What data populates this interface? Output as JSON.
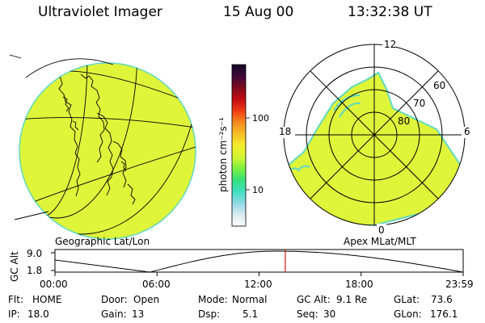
{
  "header": {
    "title": "Ultraviolet Imager",
    "date": "15 Aug 00",
    "time": "13:32:38 UT"
  },
  "colorbar": {
    "unit_label": "photon cm⁻²s⁻¹",
    "tick_100": "100",
    "tick_10": "10",
    "stops": [
      "#ffffff",
      "#d9eaf0",
      "#8fd9e6",
      "#3fe0c0",
      "#35e27a",
      "#7ef03f",
      "#d3f533",
      "#f4ee2c",
      "#f6bd27",
      "#f48a1e",
      "#ee3d14",
      "#c40a12",
      "#7e0a1e",
      "#3d0a3a",
      "#140624"
    ]
  },
  "globe_panel": {
    "label": "Geographic Lat/Lon",
    "fill_color": "#dff53a",
    "edge_color": "#5fd9c2"
  },
  "polar_panel": {
    "label": "Apex MLat/MLT",
    "mlt_12": "12",
    "mlt_18": "18",
    "mlt_6": "6",
    "mlt_0": "0",
    "lat_60": "60",
    "lat_70": "70",
    "lat_80": "80"
  },
  "altitude_plot": {
    "ylabel": "GC Alt",
    "y_top": "9.0",
    "y_bottom": "1.8",
    "ticks": [
      "00:00",
      "06:00",
      "12:00",
      "18:00",
      "23:59"
    ],
    "current_time_hours": 13.54,
    "marker_color": "#d21414"
  },
  "info": {
    "flt_label": "Flt:",
    "flt_value": "HOME",
    "ip_label": "IP:",
    "ip_value": "18.0",
    "door_label": "Door:",
    "door_value": "Open",
    "gain_label": "Gain:",
    "gain_value": "13",
    "mode_label": "Mode:",
    "mode_value": "Normal",
    "dsp_label": "Dsp:",
    "dsp_value": "5.1",
    "gcalt_label": "GC Alt:",
    "gcalt_value": "9.1 Re",
    "seq_label": "Seq:",
    "seq_value": "30",
    "glat_label": "GLat:",
    "glat_value": "73.6",
    "glon_label": "GLon:",
    "glon_value": "176.1"
  }
}
